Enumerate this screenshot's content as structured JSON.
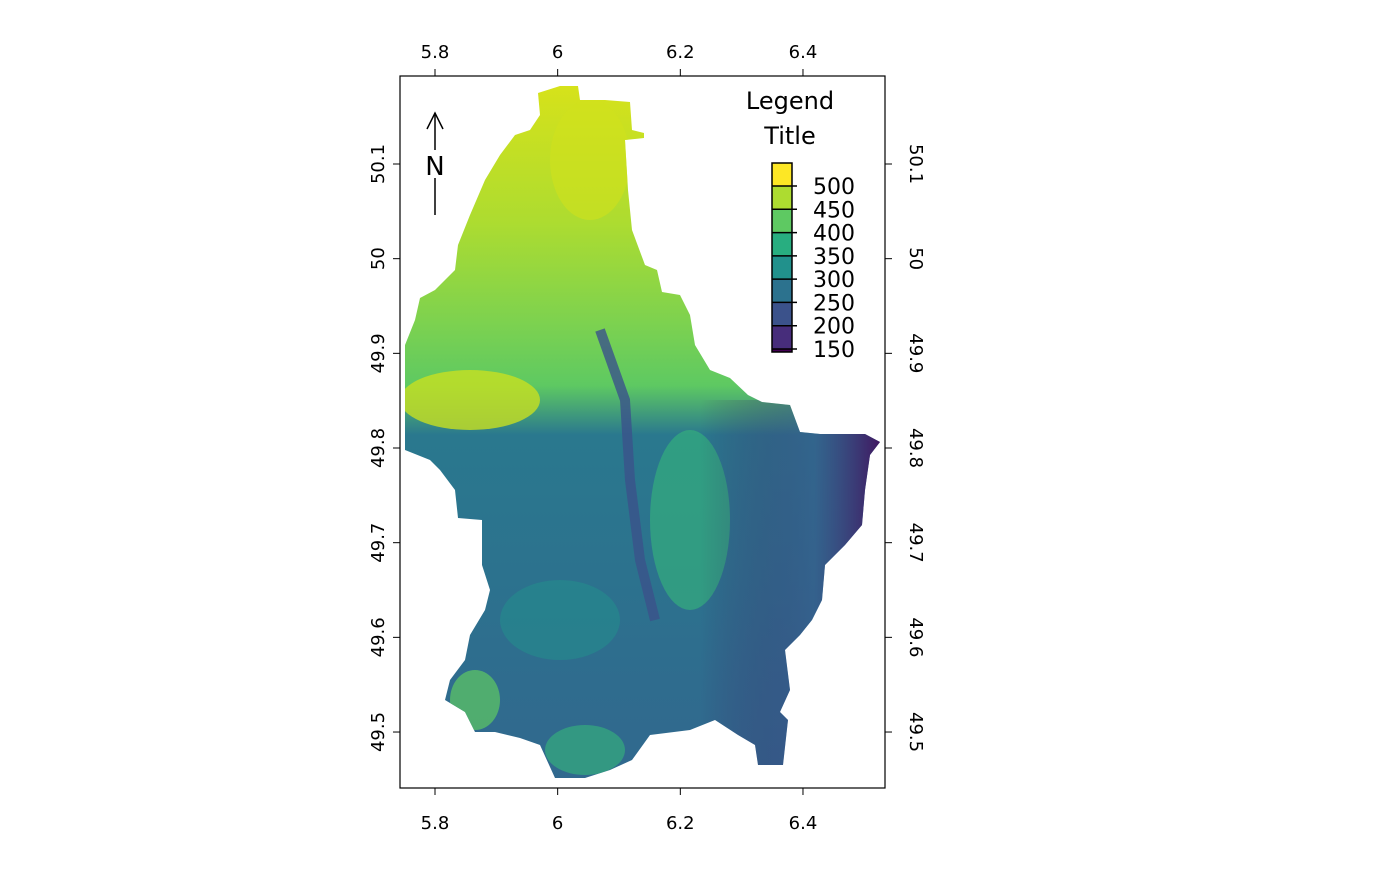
{
  "map": {
    "type": "raster",
    "x_ticks": [
      "5.8",
      "6",
      "6.2",
      "6.4"
    ],
    "x_tick_values": [
      5.8,
      6.0,
      6.2,
      6.4
    ],
    "y_ticks": [
      "49.5",
      "49.6",
      "49.7",
      "49.8",
      "49.9",
      "50",
      "50.1"
    ],
    "y_tick_values": [
      49.5,
      49.6,
      49.7,
      49.8,
      49.9,
      50.0,
      50.1
    ],
    "north_arrow_label": "N",
    "legend": {
      "title_line1": "Legend",
      "title_line2": "Title",
      "ticks": [
        "500",
        "450",
        "400",
        "350",
        "300",
        "250",
        "200",
        "150"
      ],
      "tick_values": [
        500,
        450,
        400,
        350,
        300,
        250,
        200,
        150
      ],
      "colormap": "viridis",
      "colors": [
        "#440154",
        "#472d7b",
        "#3b528b",
        "#2c728e",
        "#21918c",
        "#28ae80",
        "#5ec962",
        "#addc30",
        "#fde725"
      ]
    }
  }
}
